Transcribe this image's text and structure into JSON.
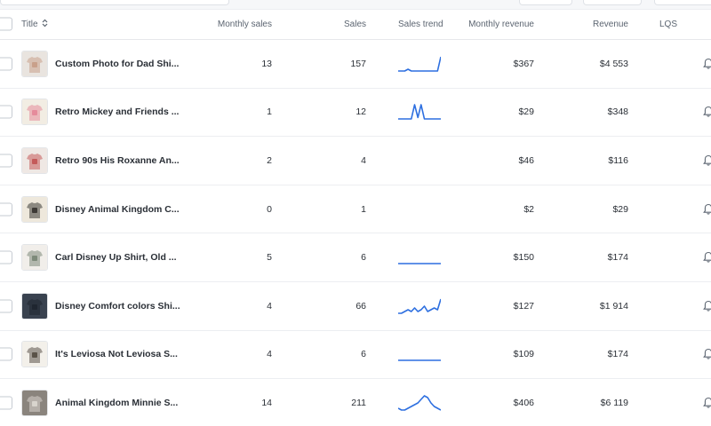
{
  "header": {
    "title": "Title",
    "monthly_sales": "Monthly sales",
    "sales": "Sales",
    "sales_trend": "Sales trend",
    "monthly_revenue": "Monthly revenue",
    "revenue": "Revenue",
    "lqs": "LQS"
  },
  "rows": [
    {
      "title": "Custom Photo for Dad Shi...",
      "monthly_sales": "13",
      "sales": "157",
      "monthly_revenue": "$367",
      "revenue": "$4 553",
      "trend": [
        1,
        1,
        1,
        2,
        1,
        1,
        1,
        1,
        1,
        1,
        1,
        1,
        1,
        9
      ],
      "thumb_colors": [
        "#e9e4df",
        "#c9a08a"
      ]
    },
    {
      "title": "Retro Mickey and Friends ...",
      "monthly_sales": "1",
      "sales": "12",
      "monthly_revenue": "$29",
      "revenue": "$348",
      "trend": [
        0,
        0,
        0,
        0,
        0,
        10,
        1,
        10,
        0,
        0,
        0,
        0,
        0,
        0
      ],
      "thumb_colors": [
        "#f2ede3",
        "#e58b9b"
      ]
    },
    {
      "title": "Retro 90s His Roxanne An...",
      "monthly_sales": "2",
      "sales": "4",
      "monthly_revenue": "$46",
      "revenue": "$116",
      "trend": [],
      "thumb_colors": [
        "#efe8e4",
        "#c45a5a"
      ]
    },
    {
      "title": "Disney Animal Kingdom C...",
      "monthly_sales": "0",
      "sales": "1",
      "monthly_revenue": "$2",
      "revenue": "$29",
      "trend": [],
      "thumb_colors": [
        "#eee8dc",
        "#3d3a36"
      ]
    },
    {
      "title": "Carl Disney Up Shirt, Old ...",
      "monthly_sales": "5",
      "sales": "6",
      "monthly_revenue": "$150",
      "revenue": "$174",
      "trend": [
        1,
        1,
        1,
        1,
        1,
        1,
        1,
        1,
        1,
        1,
        1,
        1,
        1,
        1
      ],
      "thumb_colors": [
        "#f1eeea",
        "#7d8a7a"
      ]
    },
    {
      "title": "Disney Comfort colors Shi...",
      "monthly_sales": "4",
      "sales": "66",
      "monthly_revenue": "$127",
      "revenue": "$1 914",
      "trend": [
        2,
        2,
        3,
        4,
        3,
        5,
        3,
        4,
        6,
        3,
        4,
        5,
        4,
        10
      ],
      "thumb_colors": [
        "#39424f",
        "#1f2630"
      ]
    },
    {
      "title": "It's Leviosa Not Leviosa S...",
      "monthly_sales": "4",
      "sales": "6",
      "monthly_revenue": "$109",
      "revenue": "$174",
      "trend": [
        1,
        1,
        1,
        1,
        1,
        1,
        1,
        1,
        1,
        1,
        1,
        1,
        1,
        1
      ],
      "thumb_colors": [
        "#f3f0ea",
        "#5a5248"
      ]
    },
    {
      "title": "Animal Kingdom Minnie S...",
      "monthly_sales": "14",
      "sales": "211",
      "monthly_revenue": "$406",
      "revenue": "$6 119",
      "trend": [
        2,
        1,
        1,
        2,
        3,
        4,
        5,
        7,
        9,
        8,
        5,
        3,
        2,
        1
      ],
      "thumb_colors": [
        "#8a847d",
        "#d8d4cd"
      ]
    }
  ],
  "colors": {
    "trend_line": "#2d6fe0",
    "border": "#eceef1"
  }
}
